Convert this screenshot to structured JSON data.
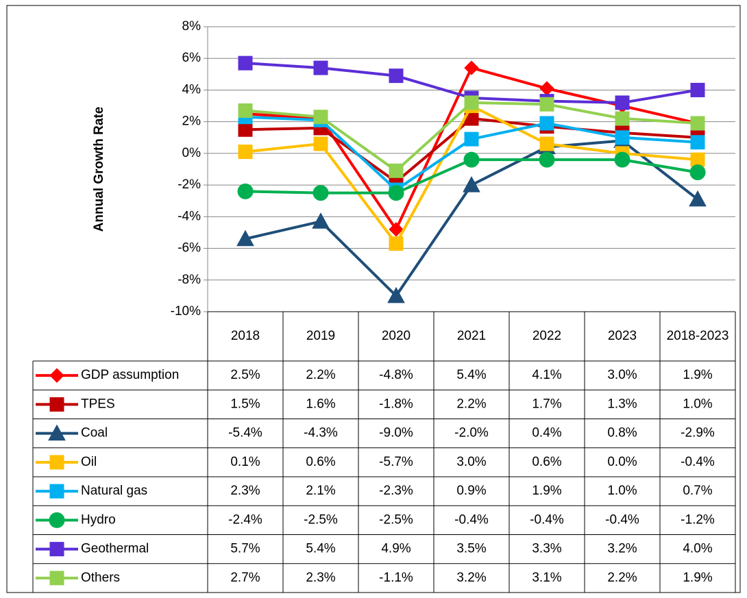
{
  "chart_data": {
    "type": "line",
    "y_label": "Annual Growth Rate",
    "categories": [
      "2018",
      "2019",
      "2020",
      "2021",
      "2022",
      "2023",
      "2018-2023"
    ],
    "ylim": [
      -10,
      8
    ],
    "yticks": [
      {
        "value": -10,
        "label": "-10%"
      },
      {
        "value": -8,
        "label": "-8%"
      },
      {
        "value": -6,
        "label": "-6%"
      },
      {
        "value": -4,
        "label": "-4%"
      },
      {
        "value": -2,
        "label": "-2%"
      },
      {
        "value": 0,
        "label": "0%"
      },
      {
        "value": 2,
        "label": "2%"
      },
      {
        "value": 4,
        "label": "4%"
      },
      {
        "value": 6,
        "label": "6%"
      },
      {
        "value": 8,
        "label": "8%"
      }
    ],
    "grid": true,
    "series": [
      {
        "name": "GDP assumption",
        "color": "#ff0000",
        "marker": "diamond",
        "values": [
          2.5,
          2.2,
          -4.8,
          5.4,
          4.1,
          3.0,
          1.9
        ],
        "value_labels": [
          "2.5%",
          "2.2%",
          "-4.8%",
          "5.4%",
          "4.1%",
          "3.0%",
          "1.9%"
        ]
      },
      {
        "name": "TPES",
        "color": "#c00000",
        "marker": "square",
        "values": [
          1.5,
          1.6,
          -1.8,
          2.2,
          1.7,
          1.3,
          1.0
        ],
        "value_labels": [
          "1.5%",
          "1.6%",
          "-1.8%",
          "2.2%",
          "1.7%",
          "1.3%",
          "1.0%"
        ]
      },
      {
        "name": "Coal",
        "color": "#1f4e79",
        "marker": "triangle",
        "values": [
          -5.4,
          -4.3,
          -9.0,
          -2.0,
          0.4,
          0.8,
          -2.9
        ],
        "value_labels": [
          "-5.4%",
          "-4.3%",
          "-9.0%",
          "-2.0%",
          "0.4%",
          "0.8%",
          "-2.9%"
        ]
      },
      {
        "name": "Oil",
        "color": "#ffc000",
        "marker": "square",
        "values": [
          0.1,
          0.6,
          -5.7,
          3.0,
          0.6,
          0.0,
          -0.4
        ],
        "value_labels": [
          "0.1%",
          "0.6%",
          "-5.7%",
          "3.0%",
          "0.6%",
          "0.0%",
          "-0.4%"
        ]
      },
      {
        "name": "Natural gas",
        "color": "#00b0f0",
        "marker": "square",
        "values": [
          2.3,
          2.1,
          -2.3,
          0.9,
          1.9,
          1.0,
          0.7
        ],
        "value_labels": [
          "2.3%",
          "2.1%",
          "-2.3%",
          "0.9%",
          "1.9%",
          "1.0%",
          "0.7%"
        ]
      },
      {
        "name": "Hydro",
        "color": "#00b050",
        "marker": "circle",
        "values": [
          -2.4,
          -2.5,
          -2.5,
          -0.4,
          -0.4,
          -0.4,
          -1.2
        ],
        "value_labels": [
          "-2.4%",
          "-2.5%",
          "-2.5%",
          "-0.4%",
          "-0.4%",
          "-0.4%",
          "-1.2%"
        ]
      },
      {
        "name": "Geothermal",
        "color": "#5b2ed6",
        "marker": "square",
        "values": [
          5.7,
          5.4,
          4.9,
          3.5,
          3.3,
          3.2,
          4.0
        ],
        "value_labels": [
          "5.7%",
          "5.4%",
          "4.9%",
          "3.5%",
          "3.3%",
          "3.2%",
          "4.0%"
        ]
      },
      {
        "name": "Others",
        "color": "#92d050",
        "marker": "square",
        "values": [
          2.7,
          2.3,
          -1.1,
          3.2,
          3.1,
          2.2,
          1.9
        ],
        "value_labels": [
          "2.7%",
          "2.3%",
          "-1.1%",
          "3.2%",
          "3.1%",
          "2.2%",
          "1.9%"
        ]
      }
    ]
  }
}
